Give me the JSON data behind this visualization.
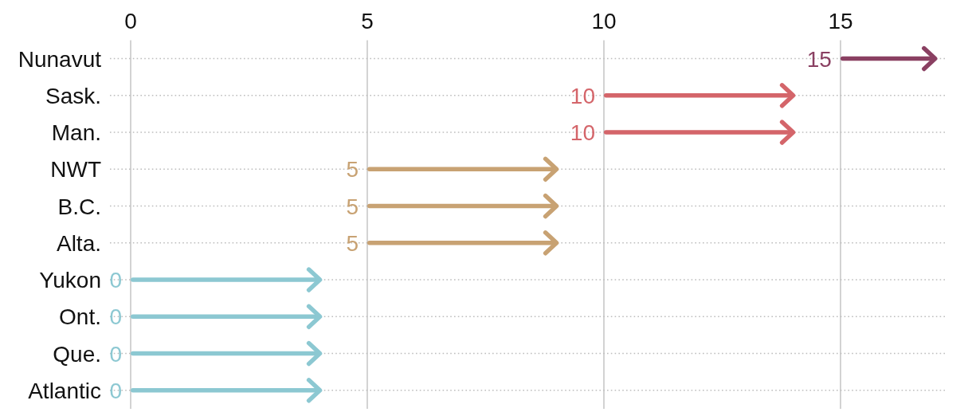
{
  "chart_data": {
    "type": "bar",
    "orientation": "horizontal",
    "categories": [
      "Nunavut",
      "Sask.",
      "Man.",
      "NWT",
      "B.C.",
      "Alta.",
      "Yukon",
      "Ont.",
      "Que.",
      "Atlantic"
    ],
    "base": [
      15,
      10,
      10,
      5,
      5,
      5,
      0,
      0,
      0,
      0
    ],
    "values": [
      2,
      4,
      4,
      4,
      4,
      4,
      4,
      4,
      4,
      4
    ],
    "colors": [
      "#8a4062",
      "#d4656a",
      "#d4656a",
      "#c8a273",
      "#c8a273",
      "#c8a273",
      "#8cc8d2",
      "#8cc8d2",
      "#8cc8d2",
      "#8cc8d2"
    ],
    "annotations": [
      {
        "text": "15",
        "x": 15,
        "y": "Nunavut"
      },
      {
        "text": "10",
        "x": 10,
        "y": "Sask."
      },
      {
        "text": "10",
        "x": 10,
        "y": "Man."
      },
      {
        "text": "5",
        "x": 5,
        "y": "NWT"
      },
      {
        "text": "5",
        "x": 5,
        "y": "B.C."
      },
      {
        "text": "5",
        "x": 5,
        "y": "Alta."
      },
      {
        "text": "0",
        "x": 0,
        "y": "Yukon"
      },
      {
        "text": "0",
        "x": 0,
        "y": "Ont."
      },
      {
        "text": "0",
        "x": 0,
        "y": "Que."
      },
      {
        "text": "0",
        "x": 0,
        "y": "Atlantic"
      }
    ],
    "xlim": [
      0,
      17.25
    ],
    "xticks": [
      0,
      5,
      10,
      15
    ],
    "grid": true
  }
}
